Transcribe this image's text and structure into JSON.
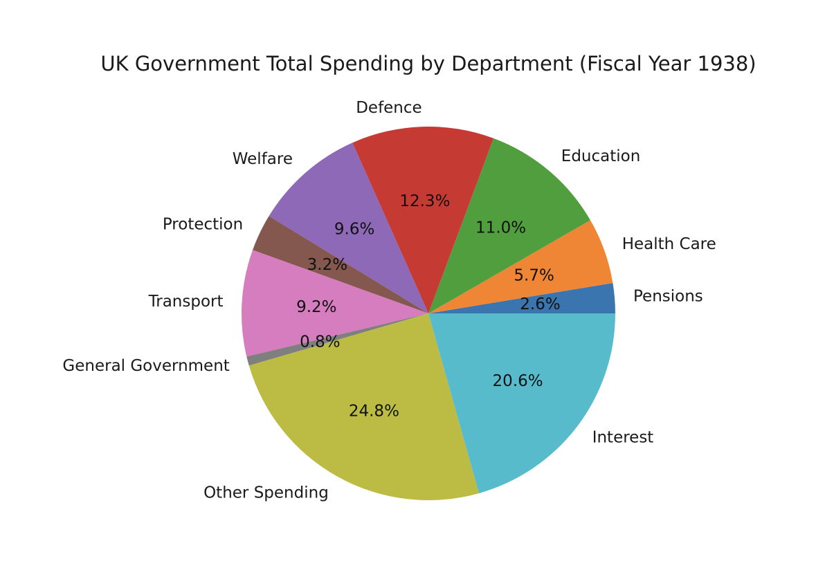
{
  "chart_data": {
    "type": "pie",
    "title": "UK Government Total Spending by Department (Fiscal Year 1938)",
    "start_angle_deg": 0,
    "direction": "counterclockwise",
    "slices": [
      {
        "label": "Pensions",
        "value": 2.6,
        "pct_label": "2.6%",
        "color": "#3b75af"
      },
      {
        "label": "Health Care",
        "value": 5.7,
        "pct_label": "5.7%",
        "color": "#ef8636"
      },
      {
        "label": "Education",
        "value": 11.0,
        "pct_label": "11.0%",
        "color": "#519e3e"
      },
      {
        "label": "Defence",
        "value": 12.3,
        "pct_label": "12.3%",
        "color": "#c53a32"
      },
      {
        "label": "Welfare",
        "value": 9.6,
        "pct_label": "9.6%",
        "color": "#8d69b8"
      },
      {
        "label": "Protection",
        "value": 3.2,
        "pct_label": "3.2%",
        "color": "#84584e"
      },
      {
        "label": "Transport",
        "value": 9.2,
        "pct_label": "9.2%",
        "color": "#d57dbe"
      },
      {
        "label": "General Government",
        "value": 0.8,
        "pct_label": "0.8%",
        "color": "#7f7f7f"
      },
      {
        "label": "Other Spending",
        "value": 24.8,
        "pct_label": "24.8%",
        "color": "#bcbc45"
      },
      {
        "label": "Interest",
        "value": 20.6,
        "pct_label": "20.6%",
        "color": "#58bbcc"
      }
    ]
  }
}
